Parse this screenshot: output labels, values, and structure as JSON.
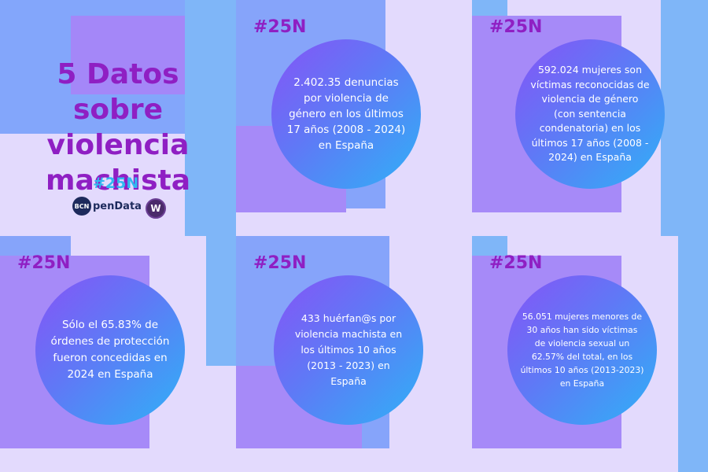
{
  "header": {
    "title": "5 Datos sobre\nviolencia\nmachista",
    "hashtag": "#25N"
  },
  "logos": {
    "opendata_badge": "BCN",
    "opendata_text": "penData",
    "w_letter": "W"
  },
  "cards": [
    {
      "tag": "#25N",
      "text": "2.402.35 denuncias\npor violencia de\ngénero en los últimos\n17 años (2008 - 2024)\nen España"
    },
    {
      "tag": "#25N",
      "text": "592.024 mujeres son\nvíctimas reconocidas de\nviolencia de género\n(con sentencia\ncondenatoria) en los\núltimos 17 años (2008 -\n2024) en España"
    },
    {
      "tag": "#25N",
      "text": "Sólo el 65.83% de\nórdenes de protección\nfueron concedidas en\n2024 en España"
    },
    {
      "tag": "#25N",
      "text": "433 huérfan@s por\nviolencia machista en\nlos últimos 10 años\n(2013 - 2023) en\nEspaña"
    },
    {
      "tag": "#25N",
      "text": "56.051 mujeres menores de\n30 años han sido víctimas\nde violencia sexual un\n62.57% del total, en los\núltimos 10 años (2013-2023)\nen España"
    }
  ],
  "colors": {
    "purple": "#8f1fc3",
    "cyan": "#31b9f0",
    "background": "#dcd3fb"
  }
}
